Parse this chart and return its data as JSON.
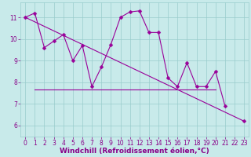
{
  "xlabel": "Windchill (Refroidissement éolien,°C)",
  "x": [
    0,
    1,
    2,
    3,
    4,
    5,
    6,
    7,
    8,
    9,
    10,
    11,
    12,
    13,
    14,
    15,
    16,
    17,
    18,
    19,
    20,
    21,
    22,
    23
  ],
  "y_line": [
    11.0,
    11.2,
    9.6,
    9.9,
    10.2,
    9.0,
    9.7,
    7.8,
    8.7,
    9.75,
    11.0,
    11.25,
    11.3,
    10.3,
    10.3,
    8.2,
    7.8,
    8.9,
    7.8,
    7.8,
    8.5,
    6.9,
    null,
    6.2
  ],
  "trend_x1": 0,
  "trend_y1": 11.0,
  "trend_x2": 23,
  "trend_y2": 6.2,
  "flat_x1": 1,
  "flat_x2": 20,
  "flat_y": 7.65,
  "bg_color": "#c8eaea",
  "grid_color": "#99cccc",
  "line_color": "#990099",
  "marker": "D",
  "marker_size": 2.5,
  "linewidth": 0.8,
  "ylim": [
    5.5,
    11.7
  ],
  "xlim": [
    -0.5,
    23.5
  ],
  "yticks": [
    6,
    7,
    8,
    9,
    10,
    11
  ],
  "xticks": [
    0,
    1,
    2,
    3,
    4,
    5,
    6,
    7,
    8,
    9,
    10,
    11,
    12,
    13,
    14,
    15,
    16,
    17,
    18,
    19,
    20,
    21,
    22,
    23
  ],
  "tick_fontsize": 5.5,
  "xlabel_fontsize": 6.5,
  "axis_label_color": "#880088"
}
